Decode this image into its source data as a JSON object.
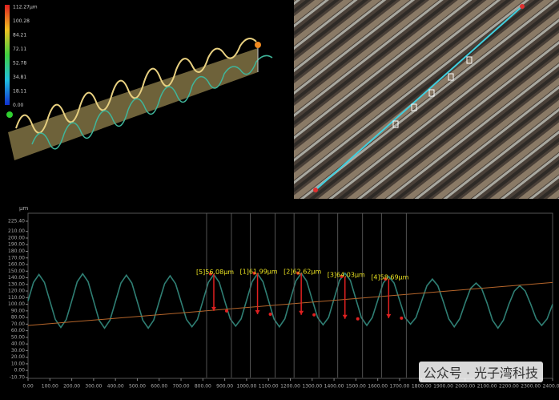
{
  "colorbar": {
    "labels": [
      "112.27μm",
      "100.28",
      "84.21",
      "72.11",
      "52.78",
      "34.81",
      "18.11",
      "0.00"
    ]
  },
  "watermark": "公众号 · 光子湾科技",
  "chart_data": {
    "type": "line",
    "y_label": "μm",
    "xlim": [
      0,
      2400
    ],
    "ylim": [
      -10.7,
      225.4
    ],
    "xticks": [
      {
        "value": 0,
        "label": "0.00"
      },
      {
        "value": 100,
        "label": "100.00"
      },
      {
        "value": 200,
        "label": "200.00"
      },
      {
        "value": 300,
        "label": "300.00"
      },
      {
        "value": 400,
        "label": "400.00"
      },
      {
        "value": 500,
        "label": "500.00"
      },
      {
        "value": 600,
        "label": "600.00"
      },
      {
        "value": 700,
        "label": "700.00"
      },
      {
        "value": 800,
        "label": "800.00"
      },
      {
        "value": 900,
        "label": "900.00"
      },
      {
        "value": 1000,
        "label": "1000.00"
      },
      {
        "value": 1100,
        "label": "1100.00"
      },
      {
        "value": 1200,
        "label": "1200.00"
      },
      {
        "value": 1300,
        "label": "1300.00"
      },
      {
        "value": 1400,
        "label": "1400.00"
      },
      {
        "value": 1500,
        "label": "1500.00"
      },
      {
        "value": 1600,
        "label": "1600.00"
      },
      {
        "value": 1700,
        "label": "1700.00"
      },
      {
        "value": 1800,
        "label": "1800.00"
      },
      {
        "value": 1900,
        "label": "1900.00"
      },
      {
        "value": 2000,
        "label": "2000.00"
      },
      {
        "value": 2100,
        "label": "2100.00"
      },
      {
        "value": 2200,
        "label": "2200.00"
      },
      {
        "value": 2300,
        "label": "2300.00"
      },
      {
        "value": 2400,
        "label": "2400.00"
      }
    ],
    "yticks": [
      {
        "value": 225.4,
        "label": "225.40"
      },
      {
        "value": 210,
        "label": "210.00"
      },
      {
        "value": 200,
        "label": "200.00"
      },
      {
        "value": 190,
        "label": "190.00"
      },
      {
        "value": 180,
        "label": "180.00"
      },
      {
        "value": 170,
        "label": "170.00"
      },
      {
        "value": 160,
        "label": "160.00"
      },
      {
        "value": 150,
        "label": "150.00"
      },
      {
        "value": 140,
        "label": "140.00"
      },
      {
        "value": 130,
        "label": "130.00"
      },
      {
        "value": 120,
        "label": "120.00"
      },
      {
        "value": 110,
        "label": "110.00"
      },
      {
        "value": 100,
        "label": "100.00"
      },
      {
        "value": 90,
        "label": "90.00"
      },
      {
        "value": 80,
        "label": "80.00"
      },
      {
        "value": 70,
        "label": "70.00"
      },
      {
        "value": 60,
        "label": "60.00"
      },
      {
        "value": 50,
        "label": "50.00"
      },
      {
        "value": 40,
        "label": "40.00"
      },
      {
        "value": 30,
        "label": "30.00"
      },
      {
        "value": 20,
        "label": "20.00"
      },
      {
        "value": 10,
        "label": "10.00"
      },
      {
        "value": 0,
        "label": "0.00"
      },
      {
        "value": -10.7,
        "label": "-10.70"
      }
    ],
    "grid": false,
    "series": [
      {
        "color": "#2f7f74",
        "x": [
          0,
          25,
          50,
          75,
          100,
          125,
          150,
          175,
          200,
          225,
          250,
          275,
          300,
          325,
          350,
          375,
          400,
          425,
          450,
          475,
          500,
          525,
          550,
          575,
          600,
          625,
          650,
          675,
          700,
          725,
          750,
          775,
          800,
          825,
          850,
          875,
          900,
          925,
          950,
          975,
          1000,
          1025,
          1050,
          1075,
          1100,
          1125,
          1150,
          1175,
          1200,
          1225,
          1250,
          1275,
          1300,
          1325,
          1350,
          1375,
          1400,
          1425,
          1450,
          1475,
          1500,
          1525,
          1550,
          1575,
          1600,
          1625,
          1650,
          1675,
          1700,
          1725,
          1750,
          1775,
          1800,
          1825,
          1850,
          1875,
          1900,
          1925,
          1950,
          1975,
          2000,
          2025,
          2050,
          2075,
          2100,
          2125,
          2150,
          2175,
          2200,
          2225,
          2250,
          2275,
          2300,
          2325,
          2350,
          2375,
          2400
        ],
        "values": [
          105,
          133,
          145,
          133,
          105,
          77,
          65,
          77,
          105,
          134,
          146,
          134,
          105,
          76,
          64,
          76,
          104,
          132,
          144,
          132,
          104,
          76,
          64,
          76,
          104,
          131,
          143,
          131,
          104,
          77,
          66,
          77,
          105,
          133,
          145,
          133,
          105,
          78,
          67,
          78,
          106,
          134,
          146,
          134,
          106,
          78,
          66,
          78,
          107,
          135,
          147,
          135,
          107,
          80,
          69,
          80,
          108,
          136,
          147,
          136,
          108,
          80,
          68,
          80,
          106,
          132,
          142,
          132,
          106,
          80,
          70,
          80,
          104,
          128,
          138,
          128,
          104,
          78,
          66,
          78,
          102,
          124,
          132,
          124,
          102,
          76,
          64,
          76,
          100,
          120,
          128,
          120,
          100,
          78,
          68,
          78,
          100
        ]
      },
      {
        "color": "#b5652a",
        "x": [
          0,
          2400
        ],
        "values": [
          68,
          133
        ]
      }
    ],
    "annotations": [
      {
        "label": "[5]56.08μm",
        "x": 850,
        "top": 146,
        "bottom": 90
      },
      {
        "label": "[1]61.99μm",
        "x": 1050,
        "top": 147,
        "bottom": 85
      },
      {
        "label": "[2]62.62μm",
        "x": 1250,
        "top": 147,
        "bottom": 84
      },
      {
        "label": "[3]64.03μm",
        "x": 1450,
        "top": 142,
        "bottom": 78
      },
      {
        "label": "[4]58.69μm",
        "x": 1650,
        "top": 138,
        "bottom": 79
      }
    ]
  }
}
